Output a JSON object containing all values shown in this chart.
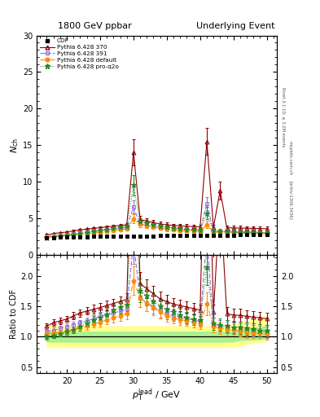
{
  "title_left": "1800 GeV ppbar",
  "title_right": "Underlying Event",
  "ylabel_main": "$N_\\mathrm{ch}$",
  "ylabel_ratio": "Ratio to CDF",
  "xlabel": "$p_{\\mathrm{T}}^{\\mathrm{lead}}$ / GeV",
  "xlim": [
    15.5,
    51.5
  ],
  "ylim_main": [
    0,
    30
  ],
  "ylim_ratio": [
    0.4,
    2.35
  ],
  "right_label_top": "Rivet 3.1.10; ≥ 3.2M events",
  "right_label_mid": "mcplots.cern.ch",
  "right_label_bot": "[arXiv:1306.3436]",
  "cdf_color": "#000000",
  "p370_color": "#8B0000",
  "p391_color": "#9370DB",
  "pdef_color": "#FF8C00",
  "pq2o_color": "#228B22",
  "band_yellow": "#FFFF80",
  "band_green": "#90EE90",
  "yticks_main": [
    0,
    5,
    10,
    15,
    20,
    25,
    30
  ],
  "yticks_ratio": [
    0.5,
    1.0,
    1.5,
    2.0
  ],
  "xticks": [
    20,
    25,
    30,
    35,
    40,
    45,
    50
  ],
  "x_cdf": [
    17,
    18,
    19,
    20,
    21,
    22,
    23,
    24,
    25,
    26,
    27,
    28,
    29,
    30,
    31,
    32,
    33,
    34,
    35,
    36,
    37,
    38,
    39,
    40,
    41,
    42,
    43,
    44,
    45,
    46,
    47,
    48,
    49,
    50
  ],
  "y_cdf": [
    2.3,
    2.35,
    2.38,
    2.4,
    2.42,
    2.44,
    2.46,
    2.48,
    2.5,
    2.51,
    2.52,
    2.53,
    2.54,
    2.55,
    2.56,
    2.57,
    2.58,
    2.59,
    2.6,
    2.6,
    2.61,
    2.62,
    2.63,
    2.64,
    2.65,
    2.66,
    2.67,
    2.68,
    2.69,
    2.7,
    2.71,
    2.72,
    2.73,
    2.74
  ],
  "y_cdf_err": [
    0.08,
    0.08,
    0.08,
    0.08,
    0.08,
    0.08,
    0.08,
    0.08,
    0.08,
    0.08,
    0.08,
    0.08,
    0.08,
    0.08,
    0.08,
    0.08,
    0.08,
    0.08,
    0.08,
    0.08,
    0.08,
    0.08,
    0.08,
    0.08,
    0.08,
    0.08,
    0.08,
    0.08,
    0.08,
    0.08,
    0.08,
    0.08,
    0.08,
    0.08
  ],
  "x_mc": [
    17,
    18,
    19,
    20,
    21,
    22,
    23,
    24,
    25,
    26,
    27,
    28,
    29,
    30,
    31,
    32,
    33,
    34,
    35,
    36,
    37,
    38,
    39,
    40,
    41,
    42,
    43,
    44,
    45,
    46,
    47,
    48,
    49,
    50
  ],
  "y_p370": [
    2.7,
    2.9,
    3.0,
    3.1,
    3.25,
    3.4,
    3.5,
    3.6,
    3.7,
    3.8,
    3.9,
    4.0,
    4.1,
    14.0,
    4.8,
    4.6,
    4.4,
    4.2,
    4.1,
    4.0,
    3.95,
    3.9,
    3.85,
    3.8,
    15.5,
    3.75,
    8.8,
    3.7,
    3.65,
    3.65,
    3.62,
    3.6,
    3.58,
    3.55
  ],
  "y_p391": [
    2.5,
    2.6,
    2.7,
    2.8,
    2.9,
    3.0,
    3.1,
    3.2,
    3.35,
    3.4,
    3.5,
    3.6,
    3.7,
    6.5,
    4.2,
    4.0,
    3.85,
    3.7,
    3.6,
    3.5,
    3.45,
    3.4,
    3.35,
    3.3,
    7.0,
    3.2,
    3.15,
    3.1,
    3.08,
    3.05,
    3.02,
    3.0,
    2.98,
    2.95
  ],
  "y_pdef": [
    2.4,
    2.5,
    2.55,
    2.6,
    2.7,
    2.8,
    2.9,
    3.0,
    3.1,
    3.2,
    3.3,
    3.4,
    3.5,
    4.9,
    4.2,
    4.0,
    3.8,
    3.65,
    3.5,
    3.4,
    3.35,
    3.3,
    3.25,
    3.2,
    4.1,
    3.1,
    3.05,
    3.0,
    2.98,
    2.95,
    2.92,
    2.9,
    2.88,
    2.85
  ],
  "y_pq2o": [
    2.3,
    2.4,
    2.5,
    2.6,
    2.7,
    2.85,
    3.0,
    3.15,
    3.3,
    3.45,
    3.6,
    3.75,
    3.9,
    9.5,
    4.5,
    4.3,
    4.1,
    3.9,
    3.75,
    3.65,
    3.55,
    3.45,
    3.4,
    3.35,
    5.7,
    3.25,
    3.2,
    3.15,
    3.12,
    3.1,
    3.08,
    3.05,
    3.02,
    3.0
  ],
  "y_p370_err": [
    0.12,
    0.12,
    0.12,
    0.12,
    0.15,
    0.15,
    0.15,
    0.18,
    0.2,
    0.2,
    0.2,
    0.22,
    0.25,
    1.8,
    0.5,
    0.4,
    0.35,
    0.3,
    0.28,
    0.25,
    0.25,
    0.25,
    0.25,
    0.25,
    1.8,
    0.3,
    1.2,
    0.3,
    0.28,
    0.28,
    0.28,
    0.28,
    0.28,
    0.28
  ],
  "y_p391_err": [
    0.1,
    0.1,
    0.1,
    0.12,
    0.12,
    0.12,
    0.15,
    0.15,
    0.18,
    0.18,
    0.2,
    0.2,
    0.22,
    0.9,
    0.4,
    0.35,
    0.3,
    0.28,
    0.25,
    0.22,
    0.22,
    0.22,
    0.22,
    0.22,
    0.9,
    0.25,
    0.25,
    0.25,
    0.25,
    0.25,
    0.25,
    0.25,
    0.25,
    0.25
  ],
  "y_pdef_err": [
    0.1,
    0.1,
    0.1,
    0.12,
    0.12,
    0.12,
    0.15,
    0.15,
    0.18,
    0.18,
    0.2,
    0.2,
    0.22,
    0.6,
    0.4,
    0.35,
    0.3,
    0.28,
    0.25,
    0.22,
    0.22,
    0.22,
    0.22,
    0.22,
    0.5,
    0.25,
    0.25,
    0.25,
    0.25,
    0.25,
    0.25,
    0.25,
    0.25,
    0.25
  ],
  "y_pq2o_err": [
    0.1,
    0.1,
    0.1,
    0.12,
    0.12,
    0.15,
    0.15,
    0.18,
    0.2,
    0.2,
    0.22,
    0.25,
    0.28,
    1.4,
    0.5,
    0.4,
    0.35,
    0.3,
    0.28,
    0.25,
    0.25,
    0.25,
    0.25,
    0.25,
    0.8,
    0.28,
    0.28,
    0.28,
    0.28,
    0.28,
    0.28,
    0.28,
    0.28,
    0.28
  ],
  "band_x": [
    17,
    18,
    19,
    20,
    21,
    22,
    23,
    24,
    25,
    26,
    27,
    28,
    29,
    30,
    31,
    32,
    33,
    34,
    35,
    36,
    37,
    38,
    39,
    40,
    41,
    42,
    43,
    44,
    45,
    46,
    47,
    48,
    49,
    50
  ],
  "band_green_lo": [
    0.92,
    0.92,
    0.92,
    0.92,
    0.92,
    0.92,
    0.92,
    0.92,
    0.92,
    0.92,
    0.92,
    0.92,
    0.92,
    0.92,
    0.92,
    0.92,
    0.92,
    0.92,
    0.92,
    0.92,
    0.92,
    0.92,
    0.92,
    0.92,
    0.92,
    0.92,
    0.92,
    0.92,
    0.92,
    0.95,
    0.95,
    0.95,
    0.97,
    0.97
  ],
  "band_green_hi": [
    1.08,
    1.08,
    1.08,
    1.08,
    1.08,
    1.08,
    1.08,
    1.08,
    1.08,
    1.08,
    1.08,
    1.08,
    1.08,
    1.08,
    1.08,
    1.08,
    1.08,
    1.08,
    1.08,
    1.08,
    1.08,
    1.08,
    1.08,
    1.08,
    1.08,
    1.08,
    1.08,
    1.08,
    1.08,
    1.12,
    1.12,
    1.15,
    1.15,
    1.18
  ],
  "band_yellow_lo": [
    0.83,
    0.83,
    0.83,
    0.83,
    0.83,
    0.83,
    0.83,
    0.83,
    0.83,
    0.83,
    0.83,
    0.83,
    0.83,
    0.83,
    0.83,
    0.83,
    0.83,
    0.83,
    0.83,
    0.83,
    0.83,
    0.83,
    0.83,
    0.83,
    0.83,
    0.83,
    0.83,
    0.83,
    0.83,
    0.85,
    0.88,
    0.9,
    0.92,
    0.92
  ],
  "band_yellow_hi": [
    1.17,
    1.17,
    1.17,
    1.17,
    1.17,
    1.17,
    1.17,
    1.17,
    1.17,
    1.17,
    1.17,
    1.17,
    1.17,
    1.17,
    1.17,
    1.17,
    1.17,
    1.17,
    1.17,
    1.17,
    1.17,
    1.17,
    1.17,
    1.17,
    1.17,
    1.17,
    1.17,
    1.17,
    1.17,
    1.22,
    1.25,
    1.28,
    1.3,
    1.35
  ]
}
